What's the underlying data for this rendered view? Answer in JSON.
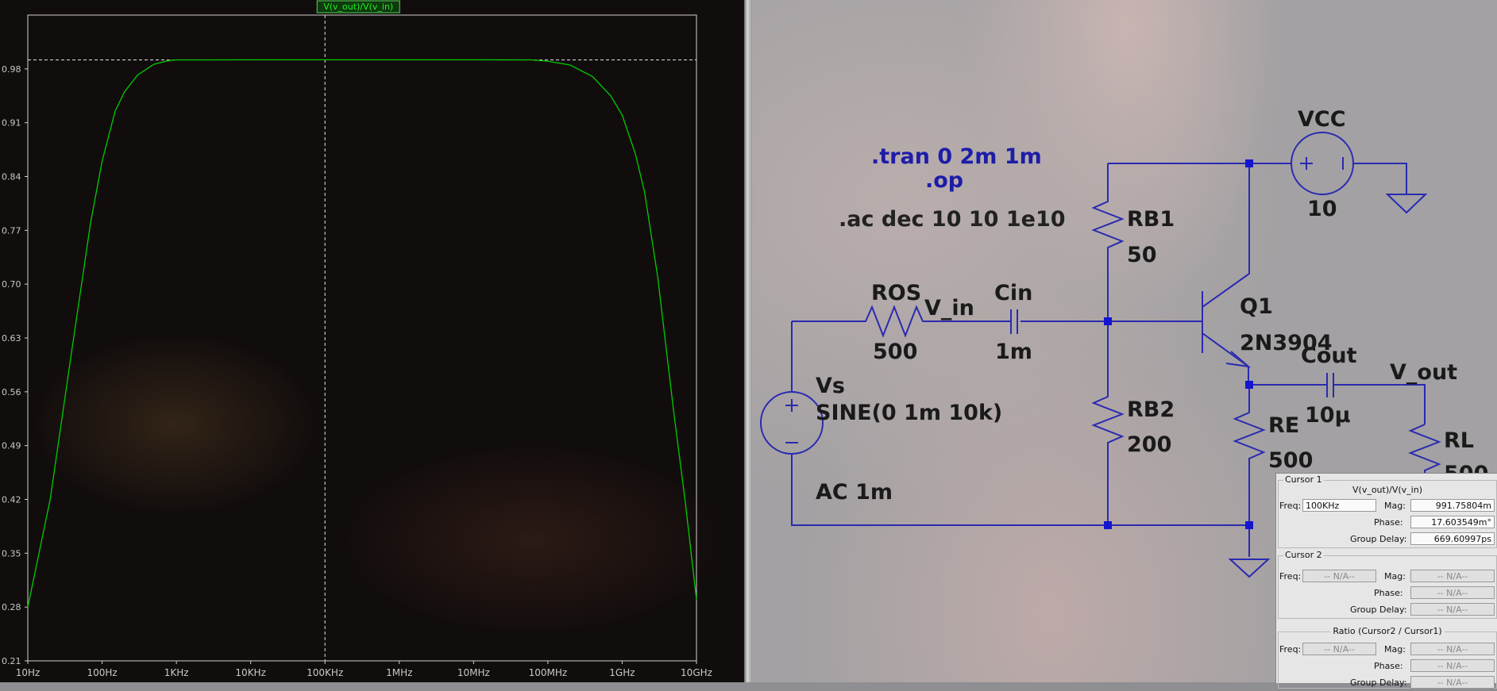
{
  "plot": {
    "trace_label": "V(v_out)/V(v_in)",
    "trace_color": "#00cc00",
    "background": "#120d0d",
    "grid_color": "#cfcfcf"
  },
  "chart_data": {
    "type": "line",
    "title": "V(v_out)/V(v_in)",
    "x_scale": "log",
    "xlim": [
      10,
      10000000000
    ],
    "ylim": [
      0.21,
      1.05
    ],
    "x_tick_labels": [
      "10Hz",
      "100Hz",
      "1KHz",
      "10KHz",
      "100KHz",
      "1MHz",
      "10MHz",
      "100MHz",
      "1GHz",
      "10GHz"
    ],
    "y_tick_labels": [
      "0.98",
      "0.91",
      "0.84",
      "0.77",
      "0.70",
      "0.63",
      "0.56",
      "0.49",
      "0.42",
      "0.35",
      "0.28",
      "0.21"
    ],
    "y_tick_values": [
      0.98,
      0.91,
      0.84,
      0.77,
      0.7,
      0.63,
      0.56,
      0.49,
      0.42,
      0.35,
      0.28,
      0.21
    ],
    "cursor_x": 100000,
    "cursor_y": 0.9917,
    "series": [
      {
        "color": "#00cc00",
        "x": [
          10,
          20,
          40,
          70,
          100,
          150,
          200,
          300,
          500,
          800,
          1000,
          10000,
          100000,
          1000000,
          10000000,
          60000000,
          100000000,
          200000000,
          400000000,
          700000000,
          1000000000,
          1500000000,
          2000000000,
          3000000000,
          5000000000,
          7000000000,
          10000000000
        ],
        "y": [
          0.28,
          0.42,
          0.62,
          0.78,
          0.86,
          0.925,
          0.95,
          0.972,
          0.986,
          0.991,
          0.9917,
          0.9918,
          0.9918,
          0.9918,
          0.9918,
          0.9917,
          0.99,
          0.985,
          0.97,
          0.945,
          0.92,
          0.87,
          0.82,
          0.71,
          0.53,
          0.42,
          0.29
        ]
      }
    ]
  },
  "schematic": {
    "directives": {
      "tran": ".tran 0 2m 1m",
      "op": ".op",
      "ac": ".ac dec 10 10 1e10"
    },
    "vcc_name": "VCC",
    "vcc_value": "10",
    "rb1_name": "RB1",
    "rb1_value": "50",
    "ros_name": "ROS",
    "ros_value": "500",
    "vin_net": "V_in",
    "cin_name": "Cin",
    "cin_value": "1m",
    "q1_name": "Q1",
    "q1_model": "2N3904",
    "cout_name": "Cout",
    "cout_value": "10µ",
    "vout_net": "V_out",
    "vs_name": "Vs",
    "vs_value": "SINE(0 1m 10k)",
    "vs_ac": "AC 1m",
    "rb2_name": "RB2",
    "rb2_value": "200",
    "re_name": "RE",
    "re_value": "500",
    "rl_name": "RL",
    "rl_value": "500",
    "wire_color": "#2a2ab0"
  },
  "cursor_panel": {
    "cursor1_title": "Cursor 1",
    "trace": "V(v_out)/V(v_in)",
    "freq_label": "Freq:",
    "mag_label": "Mag:",
    "phase_label": "Phase:",
    "group_delay_label": "Group Delay:",
    "c1_freq": "100KHz",
    "c1_mag": "991.75804m",
    "c1_phase": "17.603549m°",
    "c1_group_delay": "669.60997ps",
    "cursor2_title": "Cursor 2",
    "na": "-- N/A--",
    "ratio_title": "Ratio (Cursor2 / Cursor1)"
  }
}
